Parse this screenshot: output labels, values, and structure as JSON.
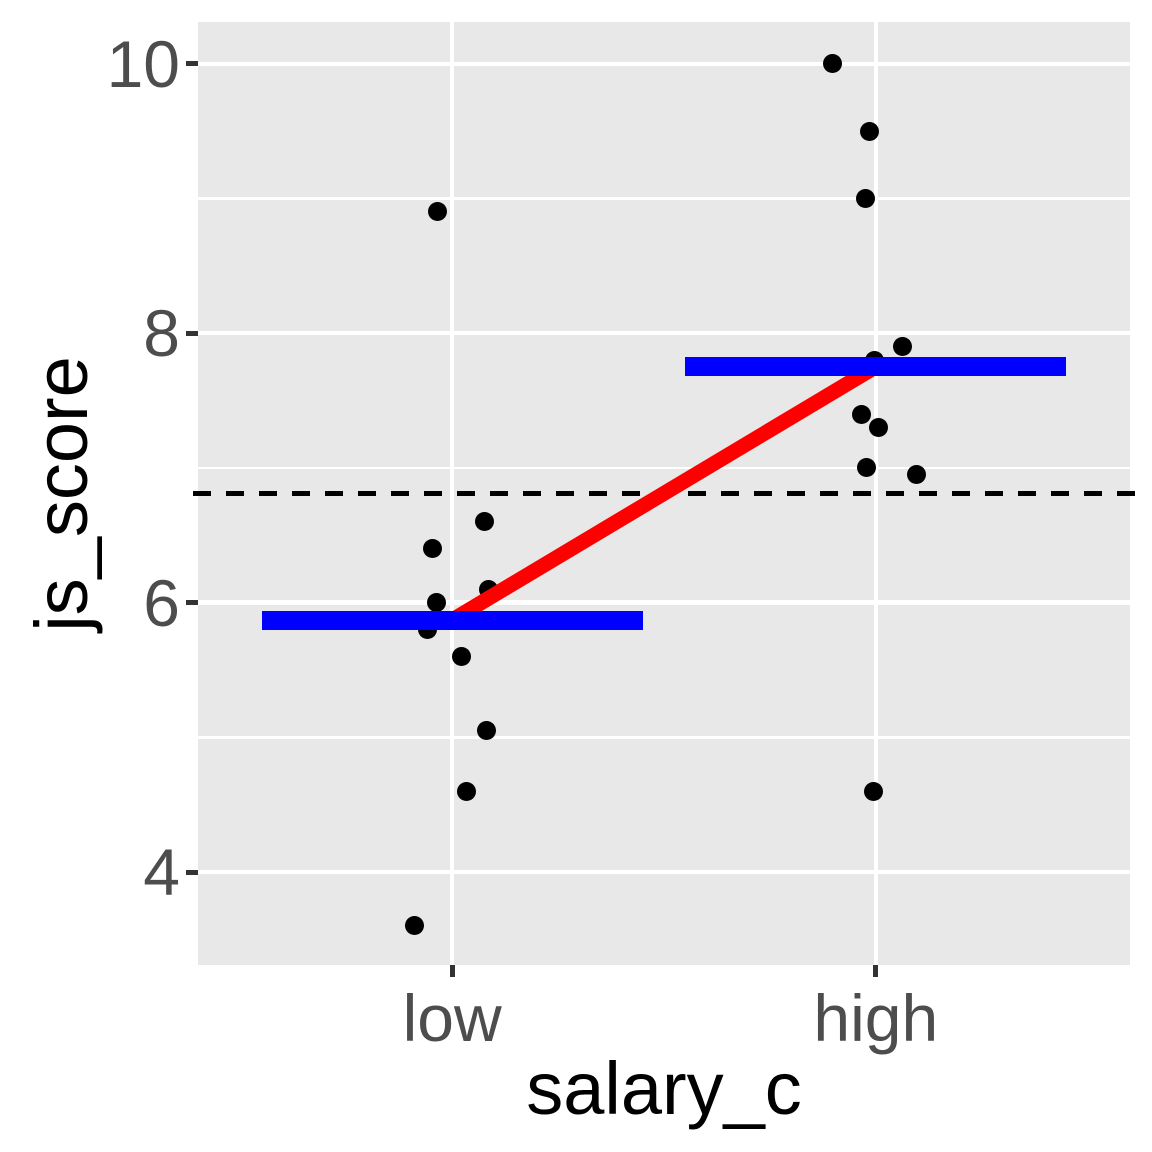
{
  "chart_data": {
    "type": "scatter",
    "title": "",
    "xlabel": "salary_c",
    "ylabel": "js_score",
    "categories": [
      "low",
      "high"
    ],
    "x_positions": [
      1,
      2
    ],
    "xlim": [
      0.4,
      2.6
    ],
    "ylim": [
      3.31,
      10.31
    ],
    "y_major_ticks": [
      10,
      8,
      6,
      4
    ],
    "y_minor_ticks": [
      9,
      7,
      5
    ],
    "grid": "white on grey panel",
    "legend": "none",
    "series": [
      {
        "name": "low",
        "x": 1,
        "mean": 5.87,
        "points": [
          {
            "v": 8.9,
            "jx": -0.035
          },
          {
            "v": 6.6,
            "jx": 0.076
          },
          {
            "v": 6.4,
            "jx": -0.047
          },
          {
            "v": 6.1,
            "jx": 0.085
          },
          {
            "v": 6.0,
            "jx": -0.038
          },
          {
            "v": 5.8,
            "jx": -0.059
          },
          {
            "v": 5.6,
            "jx": 0.021
          },
          {
            "v": 5.05,
            "jx": 0.08
          },
          {
            "v": 4.6,
            "jx": 0.033
          },
          {
            "v": 3.6,
            "jx": -0.09
          }
        ]
      },
      {
        "name": "high",
        "x": 2,
        "mean": 7.75,
        "points": [
          {
            "v": 10.0,
            "jx": -0.102
          },
          {
            "v": 9.5,
            "jx": -0.014
          },
          {
            "v": 9.0,
            "jx": -0.024
          },
          {
            "v": 7.9,
            "jx": 0.064
          },
          {
            "v": 7.8,
            "jx": -0.002
          },
          {
            "v": 7.4,
            "jx": -0.033
          },
          {
            "v": 7.3,
            "jx": 0.007
          },
          {
            "v": 7.0,
            "jx": -0.021
          },
          {
            "v": 6.95,
            "jx": 0.097
          },
          {
            "v": 4.6,
            "jx": -0.005
          }
        ]
      }
    ],
    "mean_bar": {
      "width_units": 0.9,
      "color": "#0000FF"
    },
    "mean_connector": {
      "from_mean": 5.87,
      "to_mean": 7.75,
      "color": "#FF0000"
    },
    "grand_mean_line": {
      "value": 6.81,
      "style": "dashed",
      "color": "#000000"
    },
    "colors": {
      "panel_background": "#E8E8E8",
      "gridline": "#FFFFFF",
      "points": "#000000",
      "tick_text": "#4D4D4D",
      "axis_title_text": "#000000",
      "tick_mark": "#333333"
    }
  }
}
